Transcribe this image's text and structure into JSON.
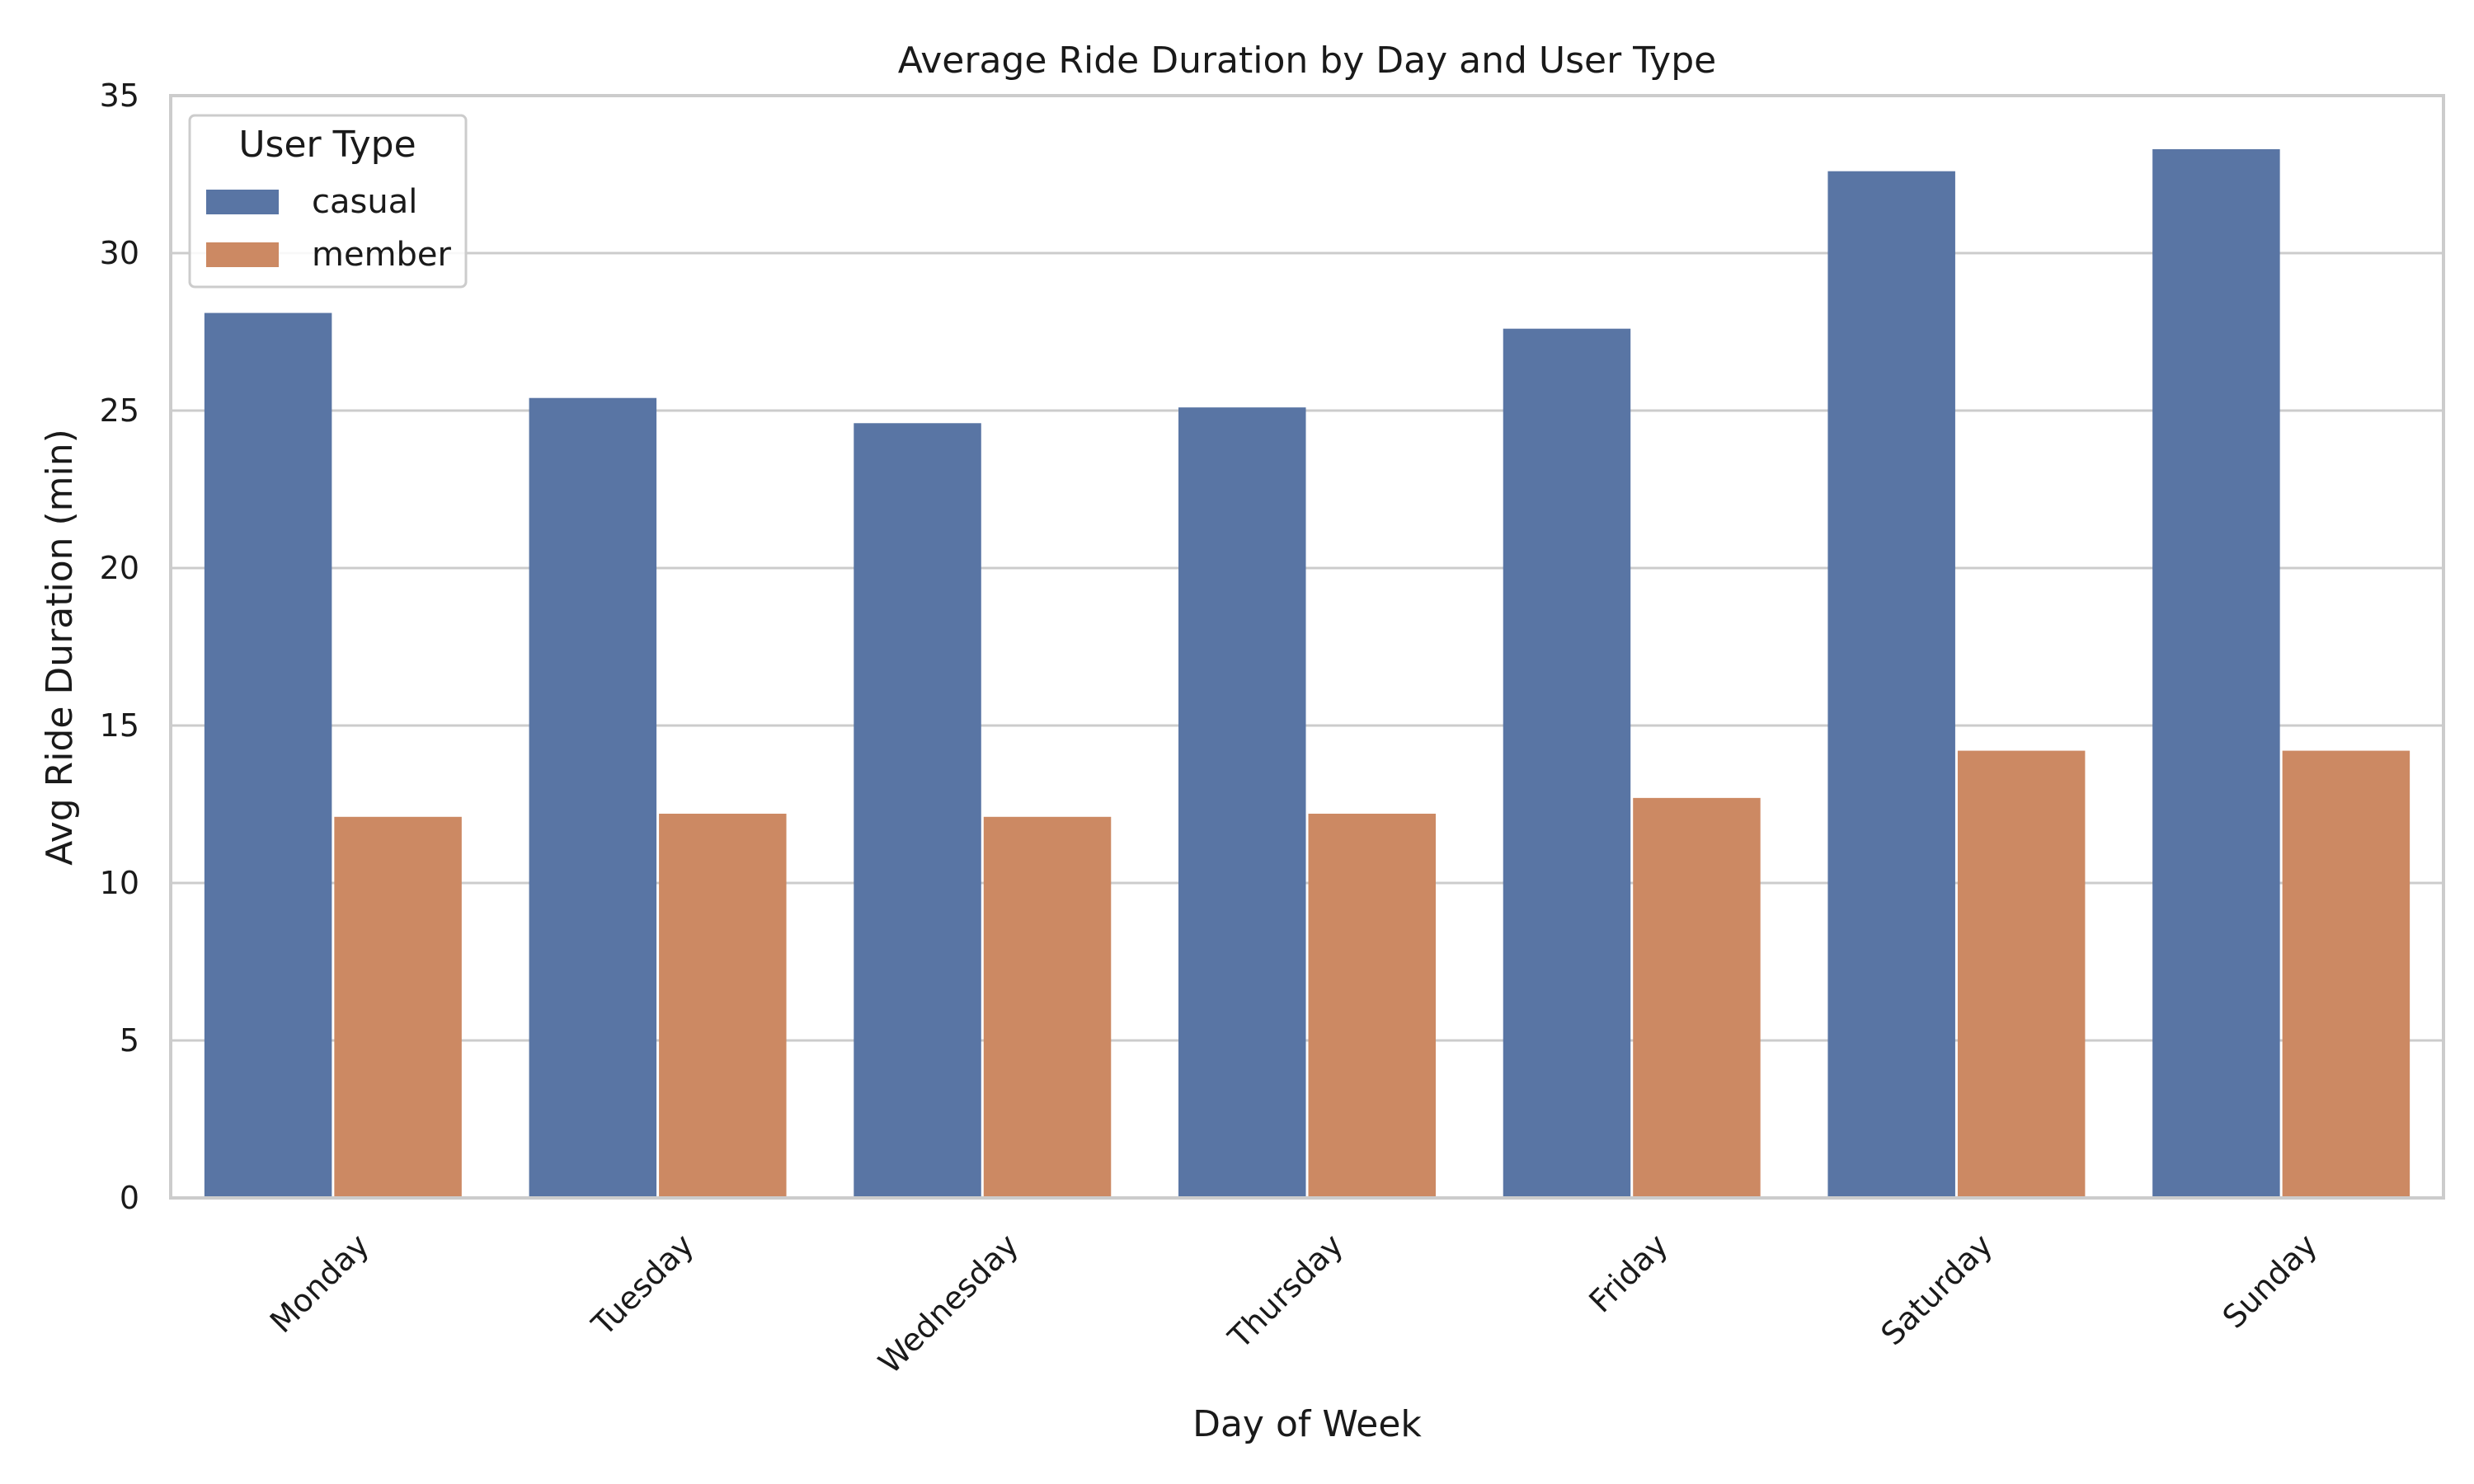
{
  "chart_data": {
    "type": "bar",
    "title": "Average Ride Duration by Day and User Type",
    "xlabel": "Day of Week",
    "ylabel": "Avg Ride Duration (min)",
    "categories": [
      "Monday",
      "Tuesday",
      "Wednesday",
      "Thursday",
      "Friday",
      "Saturday",
      "Sunday"
    ],
    "series": [
      {
        "name": "casual",
        "color": "#5975a4",
        "values": [
          28.1,
          25.4,
          24.6,
          25.1,
          27.6,
          32.6,
          33.3
        ]
      },
      {
        "name": "member",
        "color": "#cc8963",
        "values": [
          12.1,
          12.2,
          12.1,
          12.2,
          12.7,
          14.2,
          14.2
        ]
      }
    ],
    "ylim": [
      0,
      35
    ],
    "yticks": [
      0,
      5,
      10,
      15,
      20,
      25,
      30,
      35
    ],
    "grid": "horizontal",
    "legend": {
      "title": "User Type",
      "position": "top-left"
    }
  }
}
